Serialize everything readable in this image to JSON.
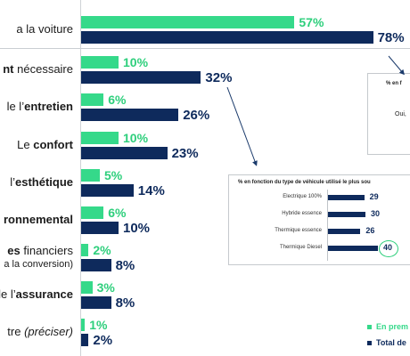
{
  "chart_data": {
    "type": "bar",
    "orientation": "horizontal",
    "series": [
      {
        "name": "En prem",
        "color": "#35d98a",
        "values": [
          57,
          10,
          6,
          10,
          5,
          6,
          2,
          3,
          1
        ],
        "labels": [
          "57%",
          "10%",
          "6%",
          "10%",
          "5%",
          "6%",
          "2%",
          "3%",
          "1%"
        ]
      },
      {
        "name": "Total de",
        "color": "#0e2a5c",
        "values": [
          78,
          32,
          26,
          23,
          14,
          10,
          8,
          8,
          2
        ],
        "labels": [
          "78%",
          "32%",
          "26%",
          "23%",
          "14%",
          "10%",
          "8%",
          "8%",
          "2%"
        ]
      }
    ],
    "categories": [
      {
        "parts": [
          {
            "t": "la voiture",
            "bold": false
          }
        ],
        "prefix": "a "
      },
      {
        "parts": [
          {
            "t": "nt",
            "bold": true
          },
          {
            "t": " nécessaire",
            "bold": false
          }
        ]
      },
      {
        "parts": [
          {
            "t": "le l’",
            "bold": false
          },
          {
            "t": "entretien",
            "bold": true
          }
        ]
      },
      {
        "parts": [
          {
            "t": "Le ",
            "bold": false
          },
          {
            "t": "confort",
            "bold": true
          }
        ]
      },
      {
        "parts": [
          {
            "t": "l’",
            "bold": false
          },
          {
            "t": "esthétique",
            "bold": true
          }
        ]
      },
      {
        "parts": [
          {
            "t": "ronnemental",
            "bold": true
          }
        ]
      },
      {
        "parts": [
          {
            "t": "es",
            "bold": true
          },
          {
            "t": " financiers",
            "bold": false
          }
        ],
        "sub": "a la conversion)"
      },
      {
        "parts": [
          {
            "t": "le l’",
            "bold": false
          },
          {
            "t": "assurance",
            "bold": true
          }
        ]
      },
      {
        "parts": [
          {
            "t": "tre ",
            "bold": false
          },
          {
            "t": "(préciser)",
            "bold": false,
            "italic": true
          }
        ]
      }
    ],
    "inset_chart": {
      "type": "bar",
      "title": "% en fonction du type de véhicule utilisé le plus sou",
      "categories": [
        "Electrique 100%",
        "Hybride essence",
        "Thermique essence",
        "Thermique Diesel"
      ],
      "values": [
        29,
        30,
        26,
        40
      ],
      "labels": [
        "29",
        "30",
        "26",
        "40"
      ],
      "highlighted": "Thermique Diesel"
    },
    "inset_partial": {
      "title": "% en f",
      "text": "Oui,"
    },
    "legend": [
      {
        "label": "En prem",
        "color": "#35d98a"
      },
      {
        "label": "Total de",
        "color": "#0e2a5c"
      }
    ],
    "legend_position": "bottom-right"
  }
}
